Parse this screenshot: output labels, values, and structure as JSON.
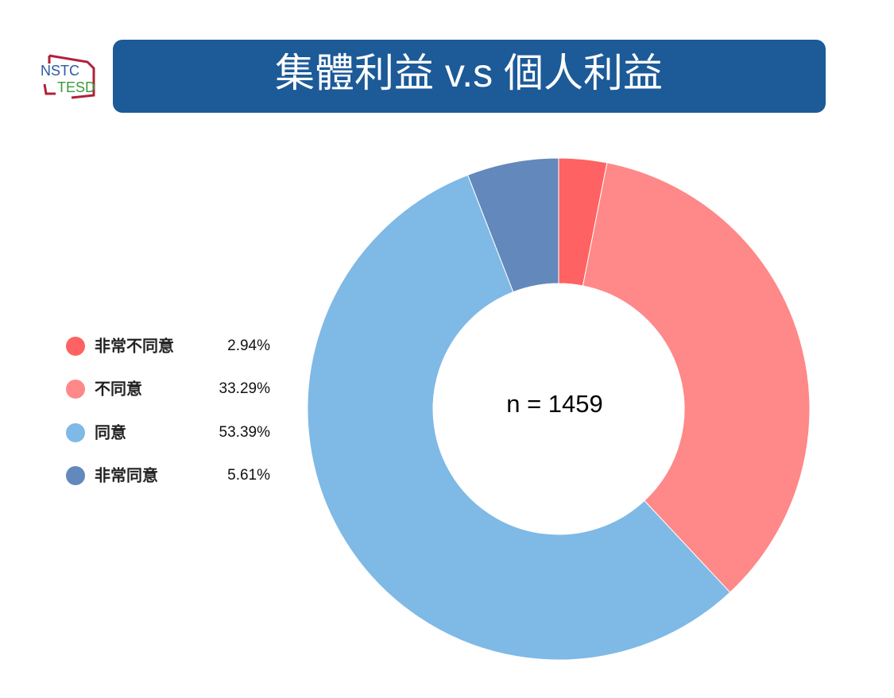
{
  "logo": {
    "top": "NSTC",
    "bottom": "TESD"
  },
  "chart_data": {
    "type": "donut",
    "title": "集體利益 v.s 個人利益",
    "center_label": "n = 1459",
    "categories": [
      "非常不同意",
      "不同意",
      "同意",
      "非常同意"
    ],
    "values": [
      2.94,
      33.29,
      53.39,
      5.61
    ],
    "value_labels": [
      "2.94%",
      "33.29%",
      "53.39%",
      "5.61%"
    ],
    "colors": [
      "#ff6262",
      "#ff8888",
      "#7fb9e6",
      "#6388bb"
    ]
  }
}
